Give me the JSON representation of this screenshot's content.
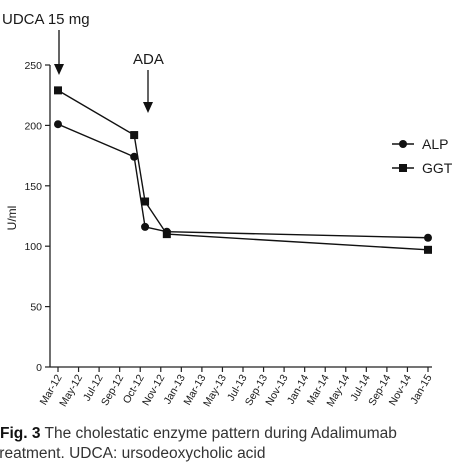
{
  "chart_data": {
    "type": "line",
    "ylabel": "U/ml",
    "ylim": [
      0,
      250
    ],
    "yticks": [
      0,
      50,
      100,
      150,
      200,
      250
    ],
    "categories": [
      "Mar-12",
      "May-12",
      "Jul-12",
      "Sep-12",
      "Oct-12",
      "Nov-12",
      "Jan-13",
      "Mar-13",
      "May-13",
      "Jul-13",
      "Sep-13",
      "Nov-13",
      "Jan-14",
      "Mar-14",
      "May-14",
      "Jul-14",
      "Sep-14",
      "Nov-14",
      "Jan-15"
    ],
    "series": [
      {
        "name": "ALP",
        "marker": "circle",
        "points": [
          {
            "x": "2012-03",
            "y": 201
          },
          {
            "x": "2012-10",
            "y": 174
          },
          {
            "x": "2012-11",
            "y": 116
          },
          {
            "x": "2013-01",
            "y": 112
          },
          {
            "x": "2015-01",
            "y": 107
          }
        ]
      },
      {
        "name": "GGT",
        "marker": "square",
        "points": [
          {
            "x": "2012-03",
            "y": 229
          },
          {
            "x": "2012-10",
            "y": 192
          },
          {
            "x": "2012-11",
            "y": 137
          },
          {
            "x": "2013-01",
            "y": 110
          },
          {
            "x": "2015-01",
            "y": 97
          }
        ]
      }
    ],
    "annotations": [
      {
        "text": "UDCA 15 mg",
        "x": "2012-03"
      },
      {
        "text": "ADA",
        "x": "2012-10"
      }
    ],
    "legend_position": "right",
    "grid": false
  },
  "caption": {
    "label": "Fig. 3",
    "line1": " The cholestatic enzyme pattern during Adalimumab",
    "line2": "treatment. UDCA: ursodeoxycholic acid"
  }
}
